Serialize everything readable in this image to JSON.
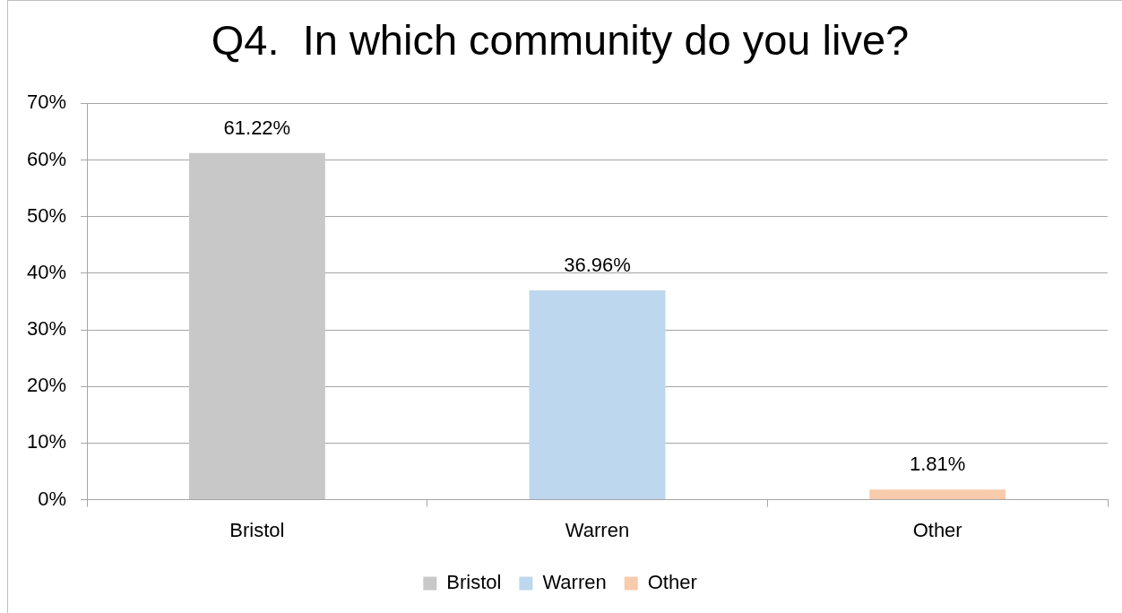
{
  "chart_data": {
    "type": "bar",
    "title": "Q4.  In which community do you live?",
    "categories": [
      "Bristol",
      "Warren",
      "Other"
    ],
    "series": [
      {
        "name": "Bristol",
        "color": "#c8c8c8",
        "values": [
          61.22,
          null,
          null
        ],
        "value_labels": [
          "61.22%",
          null,
          null
        ]
      },
      {
        "name": "Warren",
        "color": "#bdd7ee",
        "values": [
          null,
          36.96,
          null
        ],
        "value_labels": [
          null,
          "36.96%",
          null
        ]
      },
      {
        "name": "Other",
        "color": "#f8cbad",
        "values": [
          null,
          null,
          1.81
        ],
        "value_labels": [
          null,
          null,
          "1.81%"
        ]
      }
    ],
    "ylim": [
      0,
      70
    ],
    "yticks": [
      {
        "value": 0,
        "label": "0%"
      },
      {
        "value": 10,
        "label": "10%"
      },
      {
        "value": 20,
        "label": "20%"
      },
      {
        "value": 30,
        "label": "30%"
      },
      {
        "value": 40,
        "label": "40%"
      },
      {
        "value": 50,
        "label": "50%"
      },
      {
        "value": 60,
        "label": "60%"
      },
      {
        "value": 70,
        "label": "70%"
      }
    ],
    "grid": "y",
    "legend": "bottom"
  }
}
